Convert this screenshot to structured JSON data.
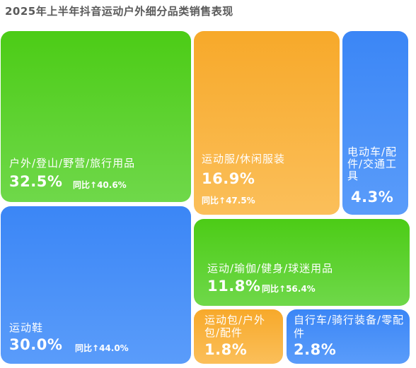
{
  "chart_data": {
    "type": "treemap",
    "title": "2025年上半年抖音运动户外细分品类销售表现",
    "yoy_prefix": "同比↑",
    "items": [
      {
        "label": "户外/登山/野营/旅行用品",
        "share": "32.5%",
        "yoy": "40.6%",
        "color": "#4ccc16"
      },
      {
        "label": "运动鞋",
        "share": "30.0%",
        "yoy": "44.0%",
        "color": "#3b86f6"
      },
      {
        "label": "运动服/休闲服装",
        "share": "16.9%",
        "yoy": "47.5%",
        "color": "#f7a92a"
      },
      {
        "label": "运动/瑜伽/健身/球迷用品",
        "share": "11.8%",
        "yoy": "56.4%",
        "color": "#4ccc16"
      },
      {
        "label": "电动车/配件/交通工具",
        "share": "4.3%",
        "yoy": "",
        "color": "#3b86f6"
      },
      {
        "label": "自行车/骑行装备/零配件",
        "share": "2.8%",
        "yoy": "",
        "color": "#3b86f6"
      },
      {
        "label": "运动包/户外包/配件",
        "share": "1.8%",
        "yoy": "",
        "color": "#f7a92a"
      }
    ]
  }
}
